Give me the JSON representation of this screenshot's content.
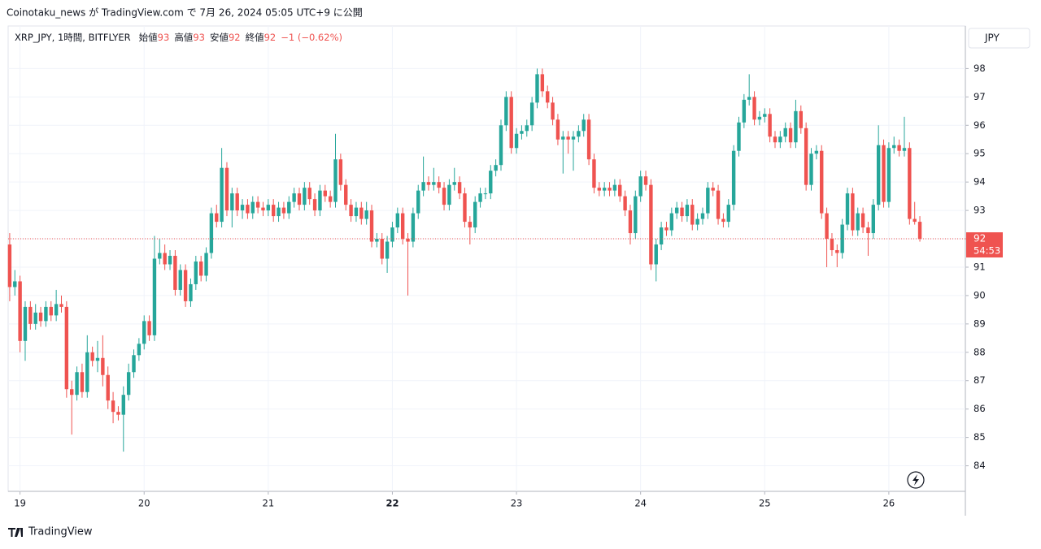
{
  "attribution": "Coinotaku_news が TradingView.com で 7月 26, 2024 05:05 UTC+9 に公開",
  "footer": "TradingView",
  "chart_data": {
    "type": "candlestick",
    "symbol": "XRP_JPY, 1時間, BITFLYER",
    "legend": [
      {
        "label": "始値",
        "value": 93
      },
      {
        "label": "高値",
        "value": 93
      },
      {
        "label": "安値",
        "value": 92
      },
      {
        "label": "終値",
        "value": 92
      }
    ],
    "change": "−1 (−0.62%)",
    "currency": "JPY",
    "price_label": "92",
    "countdown": "54:53",
    "up_color": "#26a69a",
    "down_color": "#ef5350",
    "grid": true,
    "ylim": [
      83.1,
      99.5
    ],
    "yticks": [
      84,
      85,
      86,
      87,
      88,
      89,
      90,
      91,
      92,
      93,
      94,
      95,
      96,
      97,
      98
    ],
    "xlim": [
      -0.3,
      184.8
    ],
    "xticks": [
      {
        "value": 2,
        "label": "19"
      },
      {
        "value": 26,
        "label": "20"
      },
      {
        "value": 50,
        "label": "21"
      },
      {
        "value": 74,
        "label": "22",
        "bold": true
      },
      {
        "value": 98,
        "label": "23"
      },
      {
        "value": 122,
        "label": "24"
      },
      {
        "value": 146,
        "label": "25"
      },
      {
        "value": 170,
        "label": "26"
      }
    ],
    "candles": [
      [
        91.8,
        92.2,
        89.8,
        90.3
      ],
      [
        90.3,
        90.9,
        90.0,
        90.5
      ],
      [
        90.5,
        90.7,
        88.0,
        88.4
      ],
      [
        88.4,
        89.8,
        87.7,
        89.6
      ],
      [
        89.6,
        89.8,
        88.8,
        89.0
      ],
      [
        89.0,
        89.7,
        88.8,
        89.4
      ],
      [
        89.4,
        89.6,
        88.9,
        89.1
      ],
      [
        89.1,
        89.8,
        88.9,
        89.6
      ],
      [
        89.6,
        89.8,
        89.1,
        89.3
      ],
      [
        89.3,
        90.2,
        89.1,
        89.7
      ],
      [
        89.7,
        90.0,
        89.4,
        89.6
      ],
      [
        89.6,
        89.8,
        86.4,
        86.7
      ],
      [
        86.7,
        87.0,
        85.1,
        86.5
      ],
      [
        86.5,
        87.5,
        86.3,
        87.3
      ],
      [
        87.3,
        87.6,
        86.4,
        86.6
      ],
      [
        86.6,
        88.6,
        86.4,
        88.0
      ],
      [
        88.0,
        88.2,
        87.5,
        87.7
      ],
      [
        87.7,
        88.4,
        87.3,
        87.8
      ],
      [
        87.8,
        88.6,
        86.8,
        87.2
      ],
      [
        87.2,
        87.5,
        86.0,
        86.3
      ],
      [
        86.3,
        86.6,
        85.5,
        85.9
      ],
      [
        85.9,
        86.1,
        85.6,
        85.8
      ],
      [
        85.8,
        86.8,
        84.5,
        86.5
      ],
      [
        86.5,
        87.6,
        86.3,
        87.3
      ],
      [
        87.3,
        88.1,
        87.1,
        87.9
      ],
      [
        87.9,
        88.5,
        87.7,
        88.3
      ],
      [
        88.3,
        89.3,
        88.1,
        89.1
      ],
      [
        89.1,
        89.3,
        88.4,
        88.6
      ],
      [
        88.6,
        92.1,
        88.4,
        91.3
      ],
      [
        91.3,
        92.0,
        91.1,
        91.5
      ],
      [
        91.5,
        91.8,
        90.9,
        91.1
      ],
      [
        91.1,
        91.6,
        90.9,
        91.4
      ],
      [
        91.4,
        91.6,
        90.0,
        90.2
      ],
      [
        90.2,
        91.1,
        90.0,
        90.9
      ],
      [
        90.9,
        91.1,
        89.6,
        89.8
      ],
      [
        89.8,
        90.6,
        89.6,
        90.4
      ],
      [
        90.4,
        91.4,
        90.2,
        91.2
      ],
      [
        91.2,
        91.4,
        90.5,
        90.7
      ],
      [
        90.7,
        91.7,
        90.5,
        91.5
      ],
      [
        91.5,
        93.1,
        91.3,
        92.9
      ],
      [
        92.9,
        93.2,
        92.4,
        92.6
      ],
      [
        92.6,
        95.2,
        92.4,
        94.5
      ],
      [
        94.5,
        94.7,
        92.8,
        93.0
      ],
      [
        93.0,
        93.8,
        92.4,
        93.6
      ],
      [
        93.6,
        93.8,
        92.8,
        93.0
      ],
      [
        93.0,
        93.4,
        92.7,
        93.2
      ],
      [
        93.2,
        93.4,
        92.7,
        92.9
      ],
      [
        92.9,
        93.5,
        92.7,
        93.3
      ],
      [
        93.3,
        93.5,
        92.9,
        93.1
      ],
      [
        93.1,
        93.3,
        92.8,
        93.0
      ],
      [
        93.0,
        93.4,
        92.8,
        93.2
      ],
      [
        93.2,
        93.4,
        92.6,
        92.8
      ],
      [
        92.8,
        93.3,
        92.6,
        93.1
      ],
      [
        93.1,
        93.3,
        92.7,
        92.9
      ],
      [
        92.9,
        93.5,
        92.7,
        93.3
      ],
      [
        93.3,
        93.8,
        93.1,
        93.6
      ],
      [
        93.6,
        93.8,
        93.0,
        93.2
      ],
      [
        93.2,
        94.0,
        93.0,
        93.8
      ],
      [
        93.8,
        94.0,
        93.2,
        93.4
      ],
      [
        93.4,
        93.6,
        92.8,
        93.0
      ],
      [
        93.0,
        93.9,
        92.8,
        93.7
      ],
      [
        93.7,
        93.9,
        93.3,
        93.5
      ],
      [
        93.5,
        93.7,
        93.1,
        93.3
      ],
      [
        93.3,
        95.7,
        93.1,
        94.8
      ],
      [
        94.8,
        95.0,
        93.7,
        93.9
      ],
      [
        93.9,
        94.1,
        93.0,
        93.2
      ],
      [
        93.2,
        93.4,
        92.6,
        92.8
      ],
      [
        92.8,
        93.3,
        92.6,
        93.1
      ],
      [
        93.1,
        93.3,
        92.5,
        92.7
      ],
      [
        92.7,
        93.3,
        92.5,
        93.0
      ],
      [
        93.0,
        93.2,
        91.7,
        91.9
      ],
      [
        91.9,
        92.2,
        91.7,
        92.0
      ],
      [
        92.0,
        92.2,
        91.1,
        91.3
      ],
      [
        91.3,
        92.1,
        90.8,
        91.9
      ],
      [
        91.9,
        92.6,
        91.7,
        92.4
      ],
      [
        92.4,
        93.1,
        92.2,
        92.9
      ],
      [
        92.9,
        93.1,
        91.8,
        92.0
      ],
      [
        92.0,
        92.2,
        90.0,
        91.9
      ],
      [
        91.9,
        93.1,
        91.7,
        92.9
      ],
      [
        92.9,
        93.9,
        92.7,
        93.7
      ],
      [
        93.7,
        94.9,
        93.5,
        94.0
      ],
      [
        94.0,
        94.2,
        93.7,
        93.9
      ],
      [
        93.9,
        94.5,
        93.7,
        94.0
      ],
      [
        94.0,
        94.2,
        93.6,
        93.8
      ],
      [
        93.8,
        94.0,
        93.0,
        93.2
      ],
      [
        93.2,
        94.1,
        93.0,
        93.9
      ],
      [
        93.9,
        94.5,
        93.7,
        94.0
      ],
      [
        94.0,
        94.2,
        93.4,
        93.6
      ],
      [
        93.6,
        93.8,
        92.4,
        92.6
      ],
      [
        92.6,
        92.8,
        91.8,
        92.4
      ],
      [
        92.4,
        93.5,
        92.2,
        93.3
      ],
      [
        93.3,
        93.8,
        93.1,
        93.6
      ],
      [
        93.6,
        93.8,
        93.4,
        93.6
      ],
      [
        93.6,
        94.6,
        93.4,
        94.4
      ],
      [
        94.4,
        94.8,
        94.2,
        94.6
      ],
      [
        94.6,
        96.2,
        94.4,
        96.0
      ],
      [
        96.0,
        97.2,
        95.8,
        97.0
      ],
      [
        97.0,
        97.2,
        95.0,
        95.2
      ],
      [
        95.2,
        95.9,
        95.0,
        95.7
      ],
      [
        95.7,
        96.0,
        95.5,
        95.8
      ],
      [
        95.8,
        96.2,
        95.6,
        96.0
      ],
      [
        96.0,
        97.0,
        95.8,
        96.8
      ],
      [
        96.8,
        98.0,
        96.6,
        97.8
      ],
      [
        97.8,
        98.0,
        97.0,
        97.2
      ],
      [
        97.2,
        97.4,
        96.6,
        96.8
      ],
      [
        96.8,
        97.0,
        96.0,
        96.2
      ],
      [
        96.2,
        96.4,
        95.3,
        95.5
      ],
      [
        95.5,
        95.8,
        94.3,
        95.6
      ],
      [
        95.6,
        95.8,
        95.0,
        95.5
      ],
      [
        95.5,
        95.8,
        94.4,
        95.6
      ],
      [
        95.6,
        96.0,
        95.4,
        95.8
      ],
      [
        95.8,
        96.4,
        95.6,
        96.2
      ],
      [
        96.2,
        96.4,
        94.6,
        94.8
      ],
      [
        94.8,
        95.0,
        93.6,
        93.8
      ],
      [
        93.8,
        94.0,
        93.5,
        93.7
      ],
      [
        93.7,
        94.0,
        93.5,
        93.8
      ],
      [
        93.8,
        94.0,
        93.5,
        93.7
      ],
      [
        93.7,
        94.1,
        93.5,
        93.9
      ],
      [
        93.9,
        94.1,
        93.3,
        93.5
      ],
      [
        93.5,
        93.7,
        92.8,
        93.0
      ],
      [
        93.0,
        93.2,
        91.8,
        92.2
      ],
      [
        92.2,
        93.7,
        92.0,
        93.5
      ],
      [
        93.5,
        94.4,
        93.3,
        94.2
      ],
      [
        94.2,
        94.4,
        93.7,
        93.9
      ],
      [
        93.9,
        94.1,
        90.9,
        91.1
      ],
      [
        91.1,
        92.0,
        90.5,
        91.8
      ],
      [
        91.8,
        92.6,
        91.6,
        92.4
      ],
      [
        92.4,
        92.6,
        92.1,
        92.3
      ],
      [
        92.3,
        93.1,
        92.1,
        92.9
      ],
      [
        92.9,
        93.3,
        92.7,
        93.1
      ],
      [
        93.1,
        93.3,
        92.6,
        92.8
      ],
      [
        92.8,
        93.4,
        92.6,
        93.2
      ],
      [
        93.2,
        93.4,
        92.3,
        92.5
      ],
      [
        92.5,
        92.9,
        92.3,
        92.7
      ],
      [
        92.7,
        93.1,
        92.5,
        92.9
      ],
      [
        92.9,
        94.0,
        92.7,
        93.8
      ],
      [
        93.8,
        94.0,
        93.5,
        93.7
      ],
      [
        93.7,
        93.9,
        92.5,
        92.7
      ],
      [
        92.7,
        92.9,
        92.4,
        92.6
      ],
      [
        92.6,
        93.4,
        92.4,
        93.2
      ],
      [
        93.2,
        95.3,
        93.0,
        95.1
      ],
      [
        95.1,
        96.3,
        94.9,
        96.1
      ],
      [
        96.1,
        97.1,
        95.9,
        96.9
      ],
      [
        96.9,
        97.8,
        96.7,
        97.0
      ],
      [
        97.0,
        97.2,
        96.0,
        96.2
      ],
      [
        96.2,
        96.5,
        96.0,
        96.3
      ],
      [
        96.3,
        96.6,
        96.1,
        96.4
      ],
      [
        96.4,
        96.6,
        95.4,
        95.6
      ],
      [
        95.6,
        95.8,
        95.2,
        95.4
      ],
      [
        95.4,
        95.8,
        95.2,
        95.6
      ],
      [
        95.6,
        96.1,
        95.4,
        95.9
      ],
      [
        95.9,
        96.1,
        95.2,
        95.4
      ],
      [
        95.4,
        96.9,
        95.2,
        96.5
      ],
      [
        96.5,
        96.7,
        95.7,
        95.9
      ],
      [
        95.9,
        96.1,
        93.7,
        93.9
      ],
      [
        93.9,
        95.2,
        93.7,
        95.0
      ],
      [
        95.0,
        95.3,
        94.8,
        95.1
      ],
      [
        95.1,
        95.3,
        92.7,
        92.9
      ],
      [
        92.9,
        93.1,
        91.0,
        92.0
      ],
      [
        92.0,
        92.2,
        91.4,
        91.6
      ],
      [
        91.6,
        91.8,
        91.0,
        91.5
      ],
      [
        91.5,
        92.7,
        91.3,
        92.5
      ],
      [
        92.5,
        93.8,
        92.3,
        93.6
      ],
      [
        93.6,
        93.8,
        92.1,
        92.3
      ],
      [
        92.3,
        93.1,
        92.1,
        92.9
      ],
      [
        92.9,
        93.1,
        92.2,
        92.4
      ],
      [
        92.4,
        92.6,
        91.4,
        92.2
      ],
      [
        92.2,
        93.4,
        92.0,
        93.2
      ],
      [
        93.2,
        96.0,
        93.0,
        95.3
      ],
      [
        95.3,
        95.5,
        93.1,
        93.3
      ],
      [
        93.3,
        95.4,
        93.1,
        95.2
      ],
      [
        95.2,
        95.6,
        95.0,
        95.3
      ],
      [
        95.3,
        95.5,
        94.9,
        95.1
      ],
      [
        95.1,
        96.3,
        94.9,
        95.2
      ],
      [
        95.2,
        95.4,
        92.5,
        92.7
      ],
      [
        92.7,
        93.3,
        92.5,
        92.6
      ],
      [
        92.6,
        92.8,
        91.9,
        92.0
      ]
    ]
  }
}
